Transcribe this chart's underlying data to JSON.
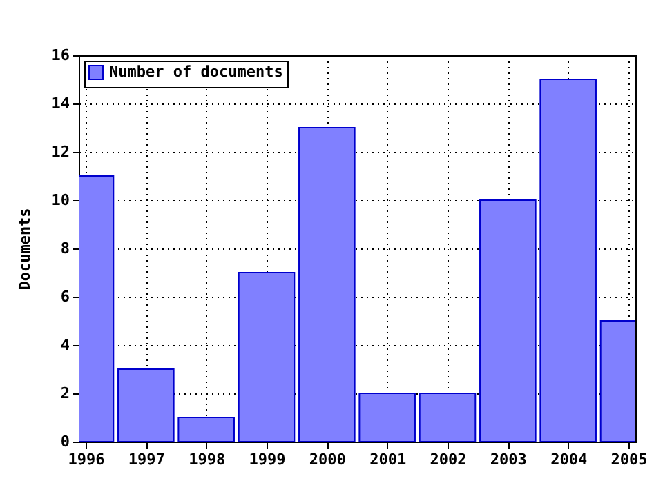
{
  "chart_data": {
    "type": "bar",
    "ylabel": "Documents",
    "x": [
      1996,
      1997,
      1998,
      1999,
      2000,
      2001,
      2002,
      2003,
      2004,
      2005
    ],
    "series": [
      {
        "name": "Number of documents",
        "color": "#8080ff",
        "values": [
          11,
          3,
          1,
          7,
          13,
          2,
          2,
          10,
          15,
          5
        ]
      }
    ],
    "xlim": [
      1996,
      2005
    ],
    "xticks": [
      1996,
      1997,
      1998,
      1999,
      2000,
      2001,
      2002,
      2003,
      2004,
      2005
    ],
    "ylim": [
      0,
      16
    ],
    "yticks": [
      0,
      2,
      4,
      6,
      8,
      10,
      12,
      14,
      16
    ],
    "grid": true,
    "legend": "top left"
  }
}
